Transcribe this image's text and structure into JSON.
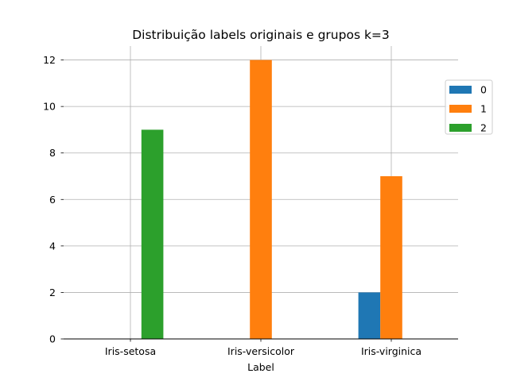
{
  "chart_data": {
    "type": "bar",
    "title": "Distribuição labels originais e grupos k=3",
    "xlabel": "Label",
    "ylabel": "",
    "categories": [
      "Iris-setosa",
      "Iris-versicolor",
      "Iris-virginica"
    ],
    "series": [
      {
        "name": "0",
        "color": "#1f77b4",
        "values": [
          0,
          0,
          2
        ]
      },
      {
        "name": "1",
        "color": "#ff7f0e",
        "values": [
          0,
          12,
          7
        ]
      },
      {
        "name": "2",
        "color": "#2ca02c",
        "values": [
          9,
          0,
          0
        ]
      }
    ],
    "ylim": [
      0,
      12.6
    ],
    "yticks": [
      0,
      2,
      4,
      6,
      8,
      10,
      12
    ],
    "grid": true,
    "legend_position": "right"
  }
}
